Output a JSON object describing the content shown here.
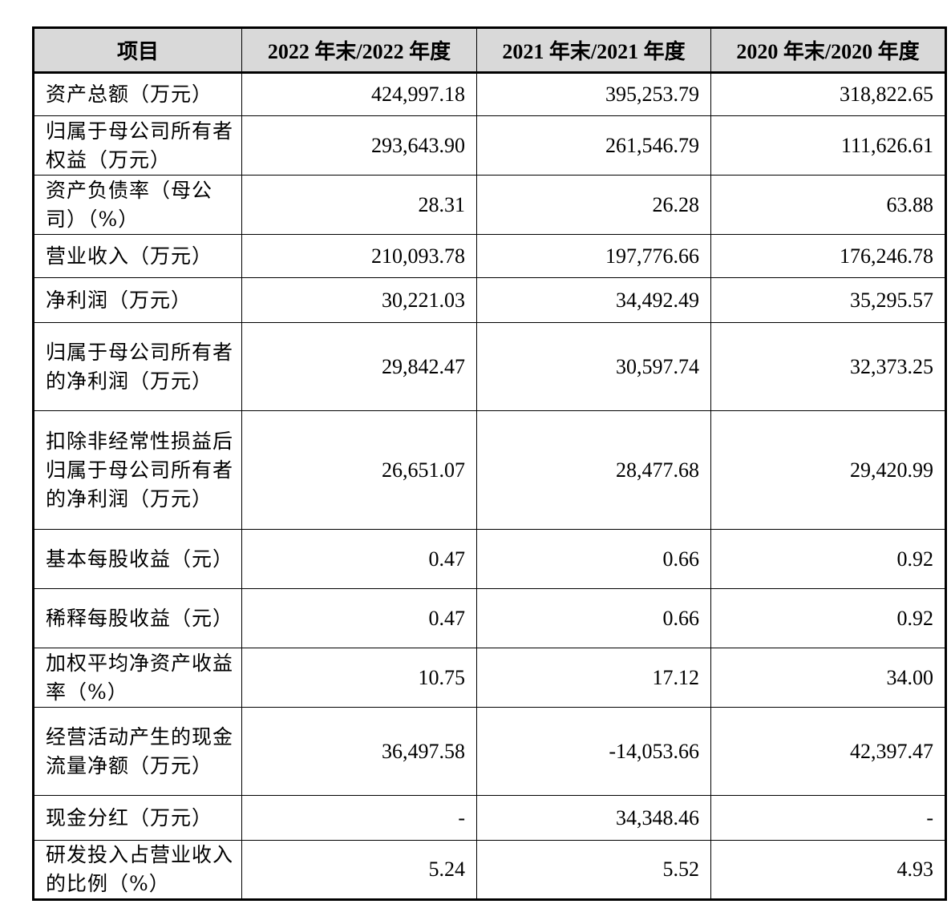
{
  "table": {
    "headers": [
      "项目",
      "2022 年末/2022 年度",
      "2021 年末/2021 年度",
      "2020 年末/2020 年度"
    ],
    "rows": [
      {
        "label": "资产总额（万元）",
        "values": [
          "424,997.18",
          "395,253.79",
          "318,822.65"
        ]
      },
      {
        "label": "归属于母公司所有者权益（万元）",
        "values": [
          "293,643.90",
          "261,546.79",
          "111,626.61"
        ]
      },
      {
        "label": "资产负债率（母公司）（%）",
        "values": [
          "28.31",
          "26.28",
          "63.88"
        ]
      },
      {
        "label": "营业收入（万元）",
        "values": [
          "210,093.78",
          "197,776.66",
          "176,246.78"
        ]
      },
      {
        "label": "净利润（万元）",
        "values": [
          "30,221.03",
          "34,492.49",
          "35,295.57"
        ]
      },
      {
        "label": "归属于母公司所有者的净利润（万元）",
        "values": [
          "29,842.47",
          "30,597.74",
          "32,373.25"
        ]
      },
      {
        "label": "扣除非经常性损益后归属于母公司所有者的净利润（万元）",
        "values": [
          "26,651.07",
          "28,477.68",
          "29,420.99"
        ]
      },
      {
        "label": "基本每股收益（元）",
        "values": [
          "0.47",
          "0.66",
          "0.92"
        ]
      },
      {
        "label": "稀释每股收益（元）",
        "values": [
          "0.47",
          "0.66",
          "0.92"
        ]
      },
      {
        "label": "加权平均净资产收益率（%）",
        "values": [
          "10.75",
          "17.12",
          "34.00"
        ]
      },
      {
        "label": "经营活动产生的现金流量净额（万元）",
        "values": [
          "36,497.58",
          "-14,053.66",
          "42,397.47"
        ]
      },
      {
        "label": "现金分红（万元）",
        "values": [
          "-",
          "34,348.46",
          "-"
        ]
      },
      {
        "label": "研发投入占营业收入的比例（%）",
        "values": [
          "5.24",
          "5.52",
          "4.93"
        ]
      }
    ]
  }
}
